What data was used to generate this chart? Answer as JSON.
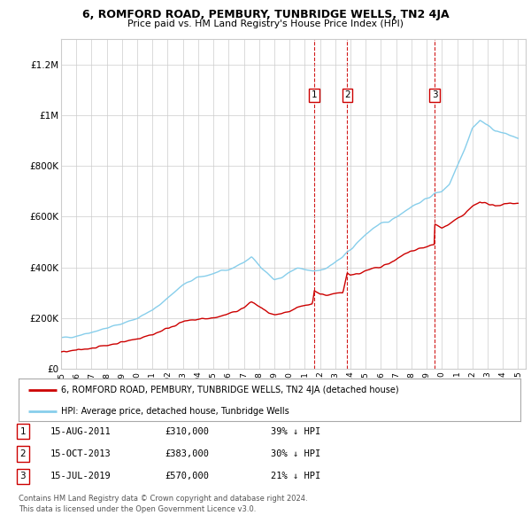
{
  "title1": "6, ROMFORD ROAD, PEMBURY, TUNBRIDGE WELLS, TN2 4JA",
  "title2": "Price paid vs. HM Land Registry's House Price Index (HPI)",
  "yticks": [
    0,
    200000,
    400000,
    600000,
    800000,
    1000000,
    1200000
  ],
  "ytick_labels": [
    "£0",
    "£200K",
    "£400K",
    "£600K",
    "£800K",
    "£1M",
    "£1.2M"
  ],
  "ylim": [
    0,
    1300000
  ],
  "hpi_color": "#87CEEB",
  "price_color": "#CC0000",
  "vline_color": "#CC0000",
  "purchase_dates": [
    2011.623,
    2013.789,
    2019.538
  ],
  "purchase_prices": [
    310000,
    383000,
    570000
  ],
  "purchase_labels": [
    "1",
    "2",
    "3"
  ],
  "legend_price_label": "6, ROMFORD ROAD, PEMBURY, TUNBRIDGE WELLS, TN2 4JA (detached house)",
  "legend_hpi_label": "HPI: Average price, detached house, Tunbridge Wells",
  "table_rows": [
    [
      "1",
      "15-AUG-2011",
      "£310,000",
      "39% ↓ HPI"
    ],
    [
      "2",
      "15-OCT-2013",
      "£383,000",
      "30% ↓ HPI"
    ],
    [
      "3",
      "15-JUL-2019",
      "£570,000",
      "21% ↓ HPI"
    ]
  ],
  "footnote": "Contains HM Land Registry data © Crown copyright and database right 2024.\nThis data is licensed under the Open Government Licence v3.0.",
  "bg_color": "#ffffff",
  "grid_color": "#cccccc",
  "xmin": 1995,
  "xmax": 2025.5,
  "hpi_keypoints": [
    [
      1995,
      120000
    ],
    [
      1996,
      130000
    ],
    [
      1997,
      145000
    ],
    [
      1998,
      160000
    ],
    [
      1999,
      178000
    ],
    [
      2000,
      200000
    ],
    [
      2001,
      230000
    ],
    [
      2002,
      280000
    ],
    [
      2003,
      330000
    ],
    [
      2004,
      360000
    ],
    [
      2005,
      375000
    ],
    [
      2006,
      390000
    ],
    [
      2007,
      420000
    ],
    [
      2007.5,
      440000
    ],
    [
      2008,
      410000
    ],
    [
      2008.5,
      380000
    ],
    [
      2009,
      350000
    ],
    [
      2009.5,
      360000
    ],
    [
      2010,
      380000
    ],
    [
      2010.5,
      395000
    ],
    [
      2011,
      390000
    ],
    [
      2011.5,
      385000
    ],
    [
      2012,
      390000
    ],
    [
      2012.5,
      400000
    ],
    [
      2013,
      420000
    ],
    [
      2013.5,
      440000
    ],
    [
      2014,
      470000
    ],
    [
      2014.5,
      500000
    ],
    [
      2015,
      530000
    ],
    [
      2015.5,
      555000
    ],
    [
      2016,
      570000
    ],
    [
      2016.5,
      580000
    ],
    [
      2017,
      600000
    ],
    [
      2017.5,
      620000
    ],
    [
      2018,
      640000
    ],
    [
      2018.5,
      655000
    ],
    [
      2019,
      670000
    ],
    [
      2019.5,
      690000
    ],
    [
      2020,
      700000
    ],
    [
      2020.5,
      730000
    ],
    [
      2021,
      800000
    ],
    [
      2021.5,
      870000
    ],
    [
      2022,
      950000
    ],
    [
      2022.5,
      980000
    ],
    [
      2023,
      960000
    ],
    [
      2023.5,
      940000
    ],
    [
      2024,
      930000
    ],
    [
      2024.5,
      920000
    ],
    [
      2025,
      910000
    ]
  ],
  "price_keypoints": [
    [
      1995,
      65000
    ],
    [
      1996,
      72000
    ],
    [
      1997,
      82000
    ],
    [
      1998,
      92000
    ],
    [
      1999,
      105000
    ],
    [
      2000,
      118000
    ],
    [
      2001,
      135000
    ],
    [
      2002,
      160000
    ],
    [
      2003,
      185000
    ],
    [
      2004,
      195000
    ],
    [
      2005,
      200000
    ],
    [
      2006,
      215000
    ],
    [
      2007,
      240000
    ],
    [
      2007.5,
      265000
    ],
    [
      2008,
      245000
    ],
    [
      2008.5,
      225000
    ],
    [
      2009,
      210000
    ],
    [
      2009.5,
      215000
    ],
    [
      2010,
      225000
    ],
    [
      2010.5,
      240000
    ],
    [
      2011,
      250000
    ],
    [
      2011.5,
      255000
    ],
    [
      2011.623,
      310000
    ],
    [
      2012,
      295000
    ],
    [
      2012.5,
      290000
    ],
    [
      2013,
      295000
    ],
    [
      2013.5,
      300000
    ],
    [
      2013.789,
      383000
    ],
    [
      2014,
      370000
    ],
    [
      2014.5,
      375000
    ],
    [
      2015,
      385000
    ],
    [
      2015.5,
      395000
    ],
    [
      2016,
      400000
    ],
    [
      2016.5,
      415000
    ],
    [
      2017,
      430000
    ],
    [
      2017.5,
      450000
    ],
    [
      2018,
      465000
    ],
    [
      2018.5,
      475000
    ],
    [
      2019,
      480000
    ],
    [
      2019.5,
      490000
    ],
    [
      2019.538,
      570000
    ],
    [
      2020,
      555000
    ],
    [
      2020.5,
      570000
    ],
    [
      2021,
      590000
    ],
    [
      2021.5,
      610000
    ],
    [
      2022,
      640000
    ],
    [
      2022.5,
      660000
    ],
    [
      2023,
      650000
    ],
    [
      2023.5,
      640000
    ],
    [
      2024,
      650000
    ],
    [
      2024.5,
      655000
    ],
    [
      2025,
      650000
    ]
  ]
}
